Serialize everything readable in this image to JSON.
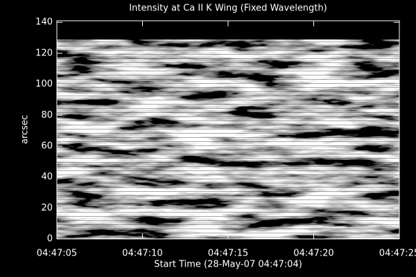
{
  "chart_data": {
    "type": "image",
    "title": "Intensity at Ca II K Wing (Fixed Wavelength)",
    "x_label": "Start Time (28-May-07 04:47:04)",
    "y_label": "arcsec",
    "xlim": [
      1,
      21
    ],
    "xticks": [
      {
        "value": 1,
        "label": "04:47:05"
      },
      {
        "value": 6,
        "label": "04:47:10"
      },
      {
        "value": 11,
        "label": "04:47:15"
      },
      {
        "value": 16,
        "label": "04:47:20"
      },
      {
        "value": 21,
        "label": "04:47:25"
      }
    ],
    "ylim": [
      0,
      141
    ],
    "yticks": [
      0,
      20,
      40,
      60,
      80,
      100,
      120,
      140
    ]
  }
}
